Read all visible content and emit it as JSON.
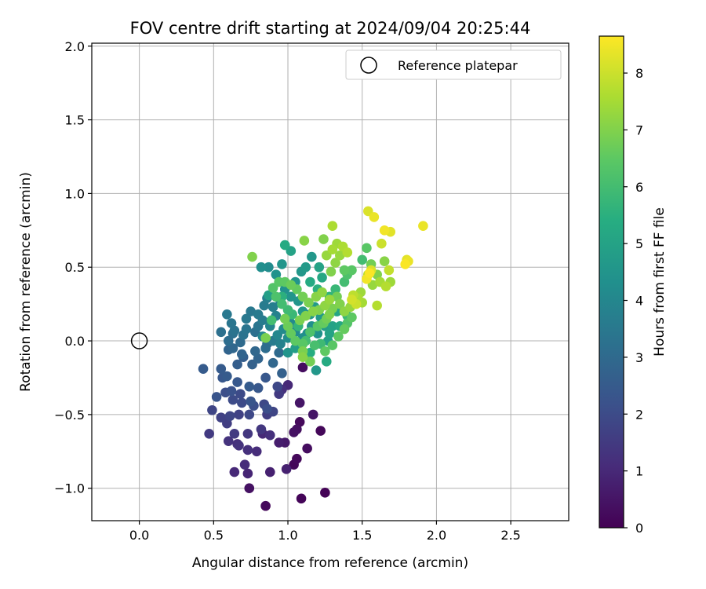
{
  "chart_data": {
    "type": "scatter",
    "title": "FOV centre drift starting at 2024/09/04 20:25:44",
    "xlabel": "Angular distance from reference (arcmin)",
    "ylabel": "Rotation from reference (arcmin)",
    "xlim": [
      -0.32,
      2.89
    ],
    "ylim": [
      -1.22,
      2.02
    ],
    "xticks": [
      0.0,
      0.5,
      1.0,
      1.5,
      2.0,
      2.5
    ],
    "xtick_labels": [
      "0.0",
      "0.5",
      "1.0",
      "1.5",
      "2.0",
      "2.5"
    ],
    "yticks": [
      -1.0,
      -0.5,
      0.0,
      0.5,
      1.0,
      1.5,
      2.0
    ],
    "ytick_labels": [
      "−1.0",
      "−0.5",
      "0.0",
      "0.5",
      "1.0",
      "1.5",
      "2.0"
    ],
    "grid": true,
    "legend": {
      "position": "top-right",
      "label": "Reference platepar"
    },
    "reference_point": {
      "x": 0.0,
      "y": 0.0
    },
    "colorbar": {
      "label": "Hours from first FF file",
      "colormap": "viridis",
      "range": [
        0,
        8.65
      ],
      "ticks": [
        0,
        1,
        2,
        3,
        4,
        5,
        6,
        7,
        8
      ],
      "tick_labels": [
        "0",
        "1",
        "2",
        "3",
        "4",
        "5",
        "6",
        "7",
        "8"
      ]
    },
    "points": [
      [
        1.25,
        -1.03,
        0.05
      ],
      [
        1.09,
        -1.07,
        0.1
      ],
      [
        0.85,
        -1.12,
        0.2
      ],
      [
        0.74,
        -1.0,
        0.4
      ],
      [
        1.04,
        -0.84,
        0.15
      ],
      [
        1.06,
        -0.8,
        0.2
      ],
      [
        1.13,
        -0.73,
        0.3
      ],
      [
        1.22,
        -0.61,
        0.15
      ],
      [
        1.08,
        -0.55,
        0.2
      ],
      [
        1.17,
        -0.5,
        0.5
      ],
      [
        1.06,
        -0.6,
        0.35
      ],
      [
        1.04,
        -0.62,
        0.4
      ],
      [
        1.08,
        -0.42,
        0.5
      ],
      [
        0.98,
        -0.69,
        0.6
      ],
      [
        0.94,
        -0.69,
        0.7
      ],
      [
        0.99,
        -0.87,
        0.8
      ],
      [
        0.88,
        -0.89,
        0.8
      ],
      [
        0.73,
        -0.9,
        0.9
      ],
      [
        0.64,
        -0.89,
        1.0
      ],
      [
        0.71,
        -0.84,
        1.1
      ],
      [
        0.79,
        -0.75,
        1.1
      ],
      [
        0.73,
        -0.74,
        1.2
      ],
      [
        0.67,
        -0.71,
        1.3
      ],
      [
        0.66,
        -0.7,
        1.2
      ],
      [
        0.6,
        -0.68,
        1.3
      ],
      [
        0.83,
        -0.63,
        1.0
      ],
      [
        0.88,
        -0.64,
        1.2
      ],
      [
        0.82,
        -0.6,
        1.4
      ],
      [
        0.73,
        -0.63,
        1.4
      ],
      [
        0.64,
        -0.63,
        1.5
      ],
      [
        0.47,
        -0.63,
        1.5
      ],
      [
        0.59,
        -0.56,
        1.6
      ],
      [
        0.55,
        -0.52,
        1.7
      ],
      [
        0.49,
        -0.47,
        1.8
      ],
      [
        0.61,
        -0.51,
        1.8
      ],
      [
        0.67,
        -0.5,
        1.7
      ],
      [
        0.74,
        -0.5,
        1.9
      ],
      [
        0.86,
        -0.5,
        1.6
      ],
      [
        0.9,
        -0.48,
        1.8
      ],
      [
        0.84,
        -0.43,
        1.9
      ],
      [
        0.69,
        -0.42,
        2.0
      ],
      [
        0.63,
        -0.4,
        2.0
      ],
      [
        0.58,
        -0.35,
        2.1
      ],
      [
        0.62,
        -0.34,
        2.2
      ],
      [
        0.68,
        -0.36,
        2.0
      ],
      [
        0.77,
        -0.44,
        2.1
      ],
      [
        0.75,
        -0.41,
        2.3
      ],
      [
        0.86,
        -0.46,
        2.1
      ],
      [
        0.93,
        -0.31,
        1.9
      ],
      [
        0.94,
        -0.36,
        1.5
      ],
      [
        0.96,
        -0.33,
        1.2
      ],
      [
        1.0,
        -0.3,
        1.0
      ],
      [
        0.52,
        -0.38,
        2.3
      ],
      [
        0.56,
        -0.25,
        2.4
      ],
      [
        0.43,
        -0.19,
        2.5
      ],
      [
        0.55,
        -0.19,
        2.5
      ],
      [
        0.59,
        -0.24,
        2.5
      ],
      [
        0.66,
        -0.28,
        2.4
      ],
      [
        0.74,
        -0.31,
        2.5
      ],
      [
        0.8,
        -0.32,
        2.4
      ],
      [
        0.85,
        -0.25,
        2.4
      ],
      [
        0.66,
        -0.16,
        2.6
      ],
      [
        0.7,
        -0.11,
        2.6
      ],
      [
        0.76,
        -0.16,
        2.7
      ],
      [
        0.69,
        -0.09,
        2.8
      ],
      [
        0.6,
        -0.06,
        2.8
      ],
      [
        0.63,
        -0.05,
        2.9
      ],
      [
        0.68,
        -0.01,
        3.0
      ],
      [
        0.78,
        -0.07,
        2.9
      ],
      [
        0.8,
        -0.12,
        2.8
      ],
      [
        0.9,
        -0.15,
        2.9
      ],
      [
        0.96,
        -0.22,
        2.7
      ],
      [
        0.94,
        -0.08,
        3.0
      ],
      [
        0.85,
        -0.05,
        3.1
      ],
      [
        0.86,
        -0.02,
        3.1
      ],
      [
        0.6,
        0.0,
        3.1
      ],
      [
        0.63,
        0.05,
        3.2
      ],
      [
        0.7,
        0.04,
        3.3
      ],
      [
        0.55,
        0.06,
        3.2
      ],
      [
        0.64,
        0.07,
        3.3
      ],
      [
        0.72,
        0.08,
        3.4
      ],
      [
        0.62,
        0.12,
        3.4
      ],
      [
        0.59,
        0.18,
        3.5
      ],
      [
        0.72,
        0.15,
        3.5
      ],
      [
        0.75,
        0.2,
        3.5
      ],
      [
        0.8,
        0.18,
        3.6
      ],
      [
        0.84,
        0.24,
        3.6
      ],
      [
        0.86,
        0.29,
        3.7
      ],
      [
        0.9,
        0.23,
        3.7
      ],
      [
        0.95,
        0.26,
        3.8
      ],
      [
        0.92,
        0.17,
        3.8
      ],
      [
        0.88,
        0.1,
        3.9
      ],
      [
        0.83,
        0.03,
        4.0
      ],
      [
        0.93,
        0.04,
        4.0
      ],
      [
        0.97,
        0.08,
        4.1
      ],
      [
        1.02,
        0.12,
        4.1
      ],
      [
        1.05,
        0.06,
        4.2
      ],
      [
        1.0,
        0.02,
        4.2
      ],
      [
        1.1,
        0.02,
        4.3
      ],
      [
        1.13,
        0.05,
        4.3
      ],
      [
        1.16,
        0.1,
        4.3
      ],
      [
        1.2,
        0.05,
        4.4
      ],
      [
        1.19,
        -0.2,
        4.6
      ],
      [
        1.1,
        -0.18,
        0.3
      ],
      [
        0.98,
        0.35,
        4.4
      ],
      [
        1.02,
        0.3,
        4.5
      ],
      [
        1.07,
        0.27,
        4.5
      ],
      [
        1.1,
        0.2,
        4.6
      ],
      [
        1.15,
        0.18,
        4.6
      ],
      [
        1.18,
        0.23,
        4.7
      ],
      [
        1.22,
        0.16,
        4.7
      ],
      [
        1.25,
        0.1,
        4.8
      ],
      [
        1.27,
        0.0,
        4.9
      ],
      [
        1.28,
        0.05,
        5.0
      ],
      [
        1.3,
        0.1,
        5.0
      ],
      [
        1.33,
        0.2,
        5.1
      ],
      [
        1.35,
        0.1,
        5.2
      ],
      [
        1.26,
        -0.14,
        5.3
      ],
      [
        0.87,
        0.5,
        4.2
      ],
      [
        0.92,
        0.45,
        4.4
      ],
      [
        0.82,
        0.5,
        4.3
      ],
      [
        0.96,
        0.52,
        4.5
      ],
      [
        1.05,
        0.4,
        4.5
      ],
      [
        1.09,
        0.47,
        4.6
      ],
      [
        1.12,
        0.5,
        4.7
      ],
      [
        1.16,
        0.57,
        4.6
      ],
      [
        1.02,
        0.61,
        5.0
      ],
      [
        0.98,
        0.65,
        5.3
      ],
      [
        1.21,
        0.5,
        5.0
      ],
      [
        1.23,
        0.43,
        5.2
      ],
      [
        1.15,
        0.4,
        5.3
      ],
      [
        1.2,
        0.35,
        5.5
      ],
      [
        1.28,
        0.3,
        5.6
      ],
      [
        1.32,
        0.35,
        5.8
      ],
      [
        1.38,
        0.4,
        6.0
      ],
      [
        1.4,
        0.45,
        6.2
      ],
      [
        1.43,
        0.48,
        6.4
      ],
      [
        1.38,
        0.48,
        6.5
      ],
      [
        1.5,
        0.55,
        6.0
      ],
      [
        1.53,
        0.63,
        6.4
      ],
      [
        1.56,
        0.52,
        6.8
      ],
      [
        1.6,
        0.45,
        7.0
      ],
      [
        1.65,
        0.54,
        7.1
      ],
      [
        1.57,
        0.38,
        7.3
      ],
      [
        1.62,
        0.4,
        7.5
      ],
      [
        1.66,
        0.37,
        7.7
      ],
      [
        1.69,
        0.4,
        7.4
      ],
      [
        1.54,
        0.45,
        7.8
      ],
      [
        1.56,
        0.48,
        8.2
      ],
      [
        1.49,
        0.33,
        7.4
      ],
      [
        1.47,
        0.29,
        7.6
      ],
      [
        1.5,
        0.26,
        7.5
      ],
      [
        1.44,
        0.31,
        7.8
      ],
      [
        1.46,
        0.25,
        8.0
      ],
      [
        1.42,
        0.23,
        7.3
      ],
      [
        1.38,
        0.2,
        7.2
      ],
      [
        1.35,
        0.25,
        7.0
      ],
      [
        1.33,
        0.3,
        6.8
      ],
      [
        1.3,
        0.22,
        6.9
      ],
      [
        1.28,
        0.18,
        7.0
      ],
      [
        1.26,
        0.15,
        6.8
      ],
      [
        1.24,
        0.12,
        6.6
      ],
      [
        1.2,
        0.1,
        6.4
      ],
      [
        1.15,
        0.06,
        6.2
      ],
      [
        1.12,
        0.0,
        6.0
      ],
      [
        1.1,
        -0.02,
        6.4
      ],
      [
        1.05,
        0.0,
        6.5
      ],
      [
        1.02,
        0.05,
        6.6
      ],
      [
        1.0,
        0.1,
        6.7
      ],
      [
        0.98,
        0.15,
        6.8
      ],
      [
        1.08,
        0.14,
        6.9
      ],
      [
        1.12,
        0.17,
        7.0
      ],
      [
        1.17,
        0.2,
        7.1
      ],
      [
        1.21,
        0.21,
        7.0
      ],
      [
        1.25,
        0.24,
        7.2
      ],
      [
        1.28,
        0.28,
        7.3
      ],
      [
        1.23,
        0.33,
        7.2
      ],
      [
        1.19,
        0.3,
        7.1
      ],
      [
        1.14,
        0.26,
        6.9
      ],
      [
        1.1,
        0.3,
        6.8
      ],
      [
        1.06,
        0.35,
        6.6
      ],
      [
        1.02,
        0.38,
        6.7
      ],
      [
        0.98,
        0.4,
        6.5
      ],
      [
        0.94,
        0.4,
        6.4
      ],
      [
        0.9,
        0.36,
        6.3
      ],
      [
        0.92,
        0.3,
        6.2
      ],
      [
        0.96,
        0.25,
        6.0
      ],
      [
        1.0,
        0.21,
        5.9
      ],
      [
        1.03,
        0.18,
        5.8
      ],
      [
        1.07,
        0.1,
        5.7
      ],
      [
        1.1,
        -0.07,
        6.9
      ],
      [
        1.1,
        -0.11,
        7.1
      ],
      [
        1.15,
        -0.14,
        6.8
      ],
      [
        1.25,
        -0.07,
        6.5
      ],
      [
        1.3,
        -0.03,
        6.4
      ],
      [
        1.34,
        0.03,
        6.5
      ],
      [
        1.38,
        0.08,
        6.6
      ],
      [
        1.4,
        0.12,
        6.3
      ],
      [
        1.43,
        0.16,
        6.5
      ],
      [
        1.4,
        0.17,
        5.8
      ],
      [
        1.29,
        0.47,
        7.0
      ],
      [
        1.32,
        0.53,
        7.2
      ],
      [
        1.35,
        0.58,
        7.3
      ],
      [
        1.3,
        0.62,
        7.5
      ],
      [
        1.37,
        0.64,
        7.6
      ],
      [
        1.4,
        0.6,
        7.7
      ],
      [
        1.33,
        0.66,
        7.4
      ],
      [
        1.26,
        0.58,
        7.3
      ],
      [
        1.24,
        0.69,
        7.0
      ],
      [
        1.11,
        0.68,
        7.1
      ],
      [
        1.3,
        0.78,
        7.6
      ],
      [
        1.54,
        0.88,
        8.2
      ],
      [
        1.58,
        0.84,
        8.4
      ],
      [
        1.65,
        0.75,
        8.5
      ],
      [
        1.69,
        0.74,
        8.3
      ],
      [
        1.91,
        0.78,
        8.4
      ],
      [
        1.81,
        0.54,
        8.4
      ],
      [
        1.8,
        0.55,
        8.3
      ],
      [
        1.79,
        0.52,
        8.6
      ],
      [
        1.63,
        0.66,
        8.0
      ],
      [
        1.68,
        0.48,
        7.9
      ],
      [
        1.6,
        0.24,
        7.7
      ],
      [
        1.53,
        0.42,
        8.5
      ],
      [
        1.55,
        0.46,
        8.6
      ],
      [
        1.43,
        0.28,
        8.1
      ],
      [
        0.76,
        0.57,
        7.0
      ],
      [
        0.89,
        0.14,
        6.0
      ],
      [
        0.85,
        0.02,
        6.9
      ],
      [
        0.96,
        0.3,
        5.5
      ],
      [
        0.87,
        0.31,
        4.9
      ],
      [
        0.83,
        0.14,
        3.6
      ],
      [
        0.8,
        0.1,
        3.4
      ],
      [
        0.78,
        0.06,
        3.2
      ],
      [
        0.9,
        0.0,
        3.6
      ],
      [
        0.95,
        -0.02,
        3.8
      ],
      [
        1.0,
        -0.08,
        4.5
      ],
      [
        1.05,
        -0.05,
        4.8
      ],
      [
        1.15,
        -0.08,
        5.4
      ],
      [
        1.22,
        -0.02,
        5.9
      ],
      [
        1.18,
        -0.03,
        6.1
      ]
    ]
  }
}
